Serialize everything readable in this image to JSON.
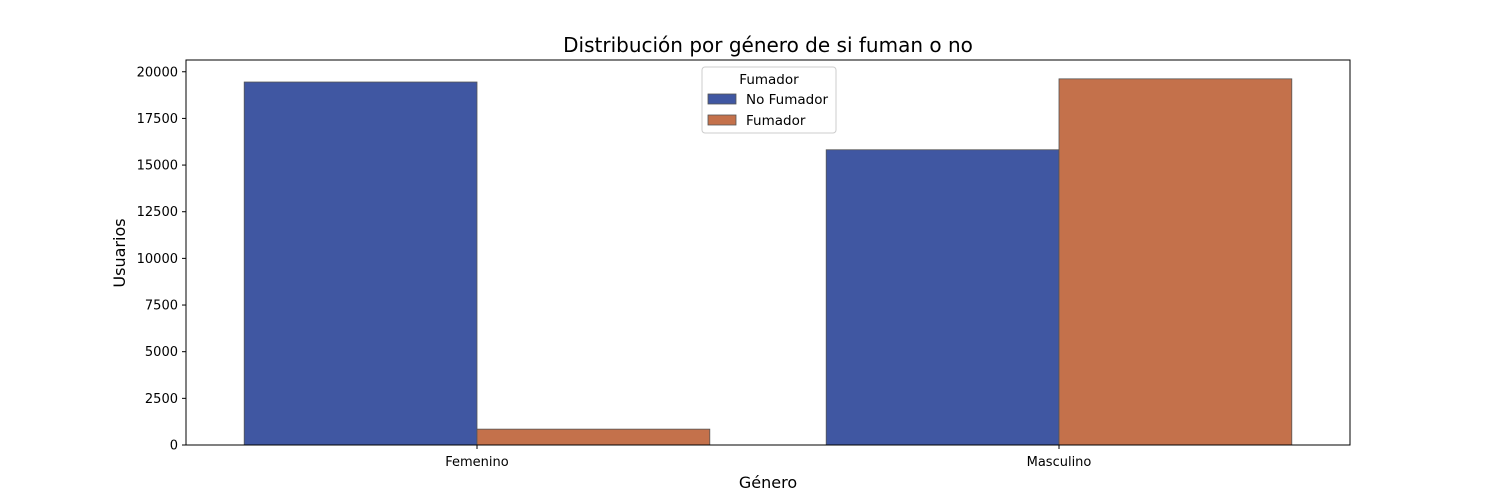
{
  "chart_data": {
    "type": "bar",
    "title": "Distribución por género de si fuman o no",
    "xlabel": "Género",
    "ylabel": "Usuarios",
    "categories": [
      "Femenino",
      "Masculino"
    ],
    "series": [
      {
        "name": "No Fumador",
        "values": [
          19450,
          15820
        ],
        "color": "#4057a2"
      },
      {
        "name": "Fumador",
        "values": [
          850,
          19620
        ],
        "color": "#c4714b"
      }
    ],
    "ylim": [
      0,
      20630
    ],
    "yticks": [
      0,
      2500,
      5000,
      7500,
      10000,
      12500,
      15000,
      17500,
      20000
    ],
    "grid": false,
    "legend": {
      "title": "Fumador",
      "placement": "top-center"
    }
  }
}
